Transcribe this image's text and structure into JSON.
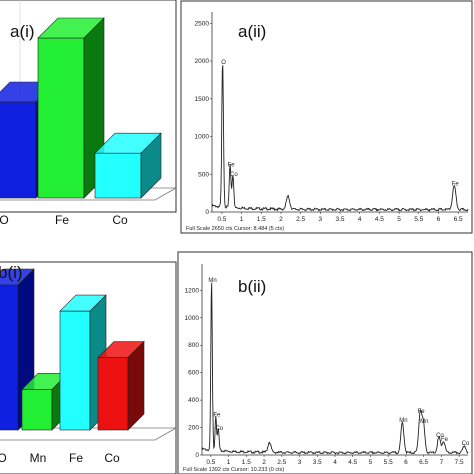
{
  "chart_data": [
    {
      "type": "bar",
      "title": "a(i)",
      "categories": [
        "O",
        "Fe",
        "Co"
      ],
      "values": [
        60,
        100,
        28
      ],
      "colors": [
        "#1020e0",
        "#22ee33",
        "#22ffff"
      ],
      "side_colors": [
        "#000a80",
        "#0a7a10",
        "#0b8a8a"
      ],
      "style": "3d"
    },
    {
      "type": "line",
      "title": "a(ii)",
      "x_ticks": [
        "0.5",
        "1",
        "1.5",
        "2",
        "2.5",
        "3",
        "3.5",
        "4",
        "4.5",
        "5",
        "5.5",
        "6",
        "6.5"
      ],
      "y_ticks": [
        "0",
        "500",
        "1000",
        "1500",
        "2000",
        "2500"
      ],
      "xlim": [
        0.25,
        6.75
      ],
      "ylim": [
        0,
        2650
      ],
      "peaks": [
        {
          "x": 0.52,
          "y": 1920,
          "label": "O"
        },
        {
          "x": 0.71,
          "y": 560,
          "label": "Fe"
        },
        {
          "x": 0.78,
          "y": 440,
          "label": "Co"
        },
        {
          "x": 2.18,
          "y": 170,
          "label": ""
        },
        {
          "x": 6.4,
          "y": 310,
          "label": "Fe"
        }
      ],
      "caption": "Full Scale 2650 cts Cursor: 8.484  (5 cts)"
    },
    {
      "type": "bar",
      "title": "b(i)",
      "categories": [
        "O",
        "Mn",
        "Fe",
        "Co"
      ],
      "values": [
        100,
        28,
        82,
        50
      ],
      "colors": [
        "#1020e0",
        "#22ee33",
        "#22ffff",
        "#ee1111"
      ],
      "side_colors": [
        "#000a80",
        "#0a7a10",
        "#0b8a8a",
        "#7a0a0a"
      ],
      "style": "3d"
    },
    {
      "type": "line",
      "title": "b(ii)",
      "x_ticks": [
        "0.5",
        "1",
        "1.5",
        "2",
        "2.5",
        "3",
        "3.5",
        "4",
        "4.5",
        "5",
        "5.5",
        "6",
        "6.5",
        "7",
        "7.5"
      ],
      "y_ticks": [
        "0",
        "200",
        "400",
        "600",
        "800",
        "1000",
        "1200"
      ],
      "xlim": [
        0.25,
        7.75
      ],
      "ylim": [
        0,
        1392
      ],
      "peaks": [
        {
          "x": 0.52,
          "y": 1240,
          "label": "Mn"
        },
        {
          "x": 0.64,
          "y": 260,
          "label": "Fe"
        },
        {
          "x": 0.71,
          "y": 160,
          "label": "Co"
        },
        {
          "x": 2.15,
          "y": 75,
          "label": ""
        },
        {
          "x": 5.9,
          "y": 220,
          "label": "Mn"
        },
        {
          "x": 6.4,
          "y": 285,
          "label": "Fe"
        },
        {
          "x": 6.49,
          "y": 210,
          "label": "Mn"
        },
        {
          "x": 6.93,
          "y": 110,
          "label": "Co"
        },
        {
          "x": 7.06,
          "y": 80,
          "label": "Fe"
        },
        {
          "x": 7.65,
          "y": 50,
          "label": "Co"
        }
      ],
      "caption": "Full Scale 1392 cts Cursor: 10.233  (0 cts)"
    }
  ],
  "axis_labels": {
    "a_ii_x_first": "0.5"
  }
}
